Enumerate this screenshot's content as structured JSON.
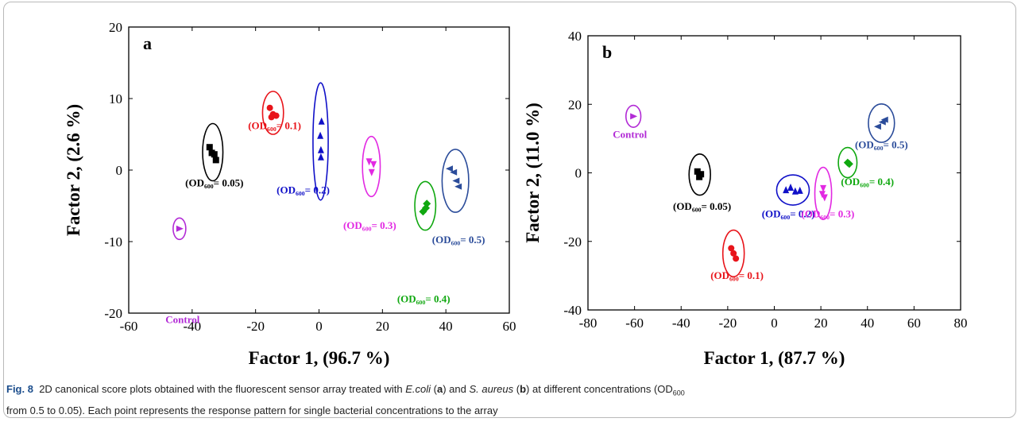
{
  "caption": {
    "label": "Fig. 8",
    "t1": "2D canonical score plots obtained with the fluorescent sensor array treated with",
    "ecoli": "E.coli",
    "paren_a_open": " (",
    "a": "a",
    "paren_a_close": ") and ",
    "saureus": "S. aureus",
    "paren_b_open": " (",
    "b": "b",
    "t2": ") at different concentrations (OD",
    "od_sub": "600",
    "t3": "from 0.5 to 0.05). Each point represents the response pattern for single bacterial concentrations to the array"
  },
  "chart_data": [
    {
      "type": "scatter",
      "panel_label": "a",
      "xlabel": "Factor 1, (96.7 %)",
      "ylabel": "Factor 2, (2.6 %)",
      "xlim": [
        -60,
        60
      ],
      "ylim": [
        -20,
        20
      ],
      "xticks": [
        -60,
        -40,
        -20,
        0,
        20,
        40,
        60
      ],
      "yticks": [
        -20,
        -10,
        0,
        10,
        20
      ],
      "grid": false,
      "series": [
        {
          "color": "#000000",
          "marker": "square",
          "label_text": "(OD₆₀₀= 0.05)",
          "label_anchor": [
            -33,
            -2.3
          ],
          "center": [
            -33.5,
            2.5
          ],
          "radius_x": [
            3.2,
            3.2
          ],
          "radius_y": [
            4,
            4
          ],
          "points": [
            [
              -34.5,
              3.2
            ],
            [
              -33,
              2.2
            ],
            [
              -32.5,
              1.4
            ],
            [
              -33.8,
              2.4
            ]
          ]
        },
        {
          "color": "#e8141a",
          "marker": "circle",
          "label_text": "(OD₆₀₀= 0.1)",
          "label_anchor": [
            -14,
            5.7
          ],
          "center": [
            -14.5,
            8
          ],
          "radius_x": [
            3.3,
            3.3
          ],
          "radius_y": [
            3,
            3
          ],
          "points": [
            [
              -15.5,
              8.7
            ],
            [
              -14.5,
              7.8
            ],
            [
              -13.5,
              7.6
            ],
            [
              -15,
              7.4
            ]
          ]
        },
        {
          "color": "#1010c8",
          "marker": "triangle-up",
          "label_text": "(OD₆₀₀= 0.2)",
          "label_anchor": [
            -5,
            -3.3
          ],
          "center": [
            0.5,
            4
          ],
          "radius_x": [
            2.4,
            2.4
          ],
          "radius_y": [
            8.2,
            8.2
          ],
          "points": [
            [
              0.8,
              6.8
            ],
            [
              0.4,
              4.8
            ],
            [
              0.6,
              2.8
            ],
            [
              0.6,
              1.8
            ]
          ]
        },
        {
          "color": "#e229e2",
          "marker": "triangle-down",
          "label_text": "(OD₆₀₀= 0.3)",
          "label_anchor": [
            16,
            -8.2
          ],
          "center": [
            16.5,
            0.5
          ],
          "radius_x": [
            2.8,
            2.8
          ],
          "radius_y": [
            4.2,
            4.2
          ],
          "points": [
            [
              15.8,
              1.2
            ],
            [
              17.2,
              0.8
            ],
            [
              16.6,
              -0.3
            ]
          ]
        },
        {
          "color": "#10a810",
          "marker": "diamond",
          "label_text": "(OD₆₀₀= 0.4)",
          "label_anchor": [
            33,
            -18.5
          ],
          "center": [
            33.5,
            -5
          ],
          "radius_x": [
            3.3,
            3.3
          ],
          "radius_y": [
            3.4,
            3.4
          ],
          "points": [
            [
              32.8,
              -5.8
            ],
            [
              34,
              -4.7
            ],
            [
              33.7,
              -5.3
            ]
          ]
        },
        {
          "color": "#2b4c9a",
          "marker": "triangle-left",
          "label_text": "(OD₆₀₀= 0.5)",
          "label_anchor": [
            44,
            -10.2
          ],
          "center": [
            43,
            -1.5
          ],
          "radius_x": [
            4.2,
            4.2
          ],
          "radius_y": [
            4.4,
            4.4
          ],
          "points": [
            [
              41.2,
              0.2
            ],
            [
              42.5,
              -0.3
            ],
            [
              43.3,
              -1.5
            ],
            [
              44,
              -2.3
            ]
          ]
        },
        {
          "color": "#b22bd6",
          "marker": "triangle-right",
          "label_text": "Control",
          "label_anchor": [
            -43,
            -21.4
          ],
          "center": [
            -44,
            -8.2
          ],
          "radius_x": [
            2,
            2
          ],
          "radius_y": [
            1.5,
            1.5
          ],
          "points": [
            [
              -44,
              -8.2
            ]
          ]
        }
      ]
    },
    {
      "type": "scatter",
      "panel_label": "b",
      "xlabel": "Factor 1, (87.7 %)",
      "ylabel": "Factor 2, (11.0 %)",
      "xlim": [
        -80,
        80
      ],
      "ylim": [
        -40,
        40
      ],
      "xticks": [
        -80,
        -60,
        -40,
        -20,
        0,
        20,
        40,
        60,
        80
      ],
      "yticks": [
        -40,
        -20,
        0,
        20,
        40
      ],
      "grid": false,
      "series": [
        {
          "color": "#000000",
          "marker": "square",
          "label_text": "(OD₆₀₀= 0.05)",
          "label_anchor": [
            -31,
            -10.8
          ],
          "center": [
            -32,
            -0.5
          ],
          "radius_x": [
            4.6,
            4.6
          ],
          "radius_y": [
            6,
            6
          ],
          "points": [
            [
              -33,
              0.4
            ],
            [
              -31.5,
              -0.4
            ],
            [
              -32.2,
              -1.2
            ]
          ]
        },
        {
          "color": "#e8141a",
          "marker": "circle",
          "label_text": "(OD₆₀₀= 0.1)",
          "label_anchor": [
            -16,
            -31
          ],
          "center": [
            -17.5,
            -23.5
          ],
          "radius_x": [
            4.6,
            4.6
          ],
          "radius_y": [
            6.8,
            6.8
          ],
          "points": [
            [
              -18.5,
              -22
            ],
            [
              -17.5,
              -23.5
            ],
            [
              -16.5,
              -25
            ]
          ]
        },
        {
          "color": "#1010c8",
          "marker": "triangle-up",
          "label_text": "(OD₆₀₀= 0.2)",
          "label_anchor": [
            6,
            -13
          ],
          "center": [
            8,
            -5
          ],
          "radius_x": [
            7,
            7
          ],
          "radius_y": [
            4.4,
            4.4
          ],
          "points": [
            [
              5,
              -5
            ],
            [
              7,
              -4.3
            ],
            [
              9,
              -5.4
            ],
            [
              11,
              -5.2
            ]
          ]
        },
        {
          "color": "#e229e2",
          "marker": "triangle-down",
          "label_text": "(OD₆₀₀= 0.3)",
          "label_anchor": [
            23,
            -13
          ],
          "center": [
            21,
            -6
          ],
          "radius_x": [
            3.6,
            3.6
          ],
          "radius_y": [
            7.6,
            7.6
          ],
          "points": [
            [
              21,
              -4.5
            ],
            [
              20.6,
              -6.2
            ],
            [
              21.6,
              -7.2
            ]
          ]
        },
        {
          "color": "#10a810",
          "marker": "diamond",
          "label_text": "(OD₆₀₀= 0.4)",
          "label_anchor": [
            40,
            -3.6
          ],
          "center": [
            31.5,
            3
          ],
          "radius_x": [
            4,
            4
          ],
          "radius_y": [
            4.4,
            4.4
          ],
          "points": [
            [
              31.5,
              3
            ],
            [
              32.2,
              2.6
            ]
          ]
        },
        {
          "color": "#2b4c9a",
          "marker": "triangle-left",
          "label_text": "(OD₆₀₀= 0.5)",
          "label_anchor": [
            46,
            7.2
          ],
          "center": [
            46,
            14.5
          ],
          "radius_x": [
            5.6,
            5.6
          ],
          "radius_y": [
            5.6,
            5.6
          ],
          "points": [
            [
              44.5,
              13.5
            ],
            [
              46.5,
              14.8
            ],
            [
              47.5,
              15.5
            ]
          ]
        },
        {
          "color": "#b22bd6",
          "marker": "triangle-right",
          "label_text": "Control",
          "label_anchor": [
            -62,
            10.2
          ],
          "center": [
            -60.5,
            16.5
          ],
          "radius_x": [
            3.2,
            3.2
          ],
          "radius_y": [
            3.2,
            3.2
          ],
          "points": [
            [
              -60.5,
              16.5
            ]
          ]
        }
      ]
    }
  ]
}
